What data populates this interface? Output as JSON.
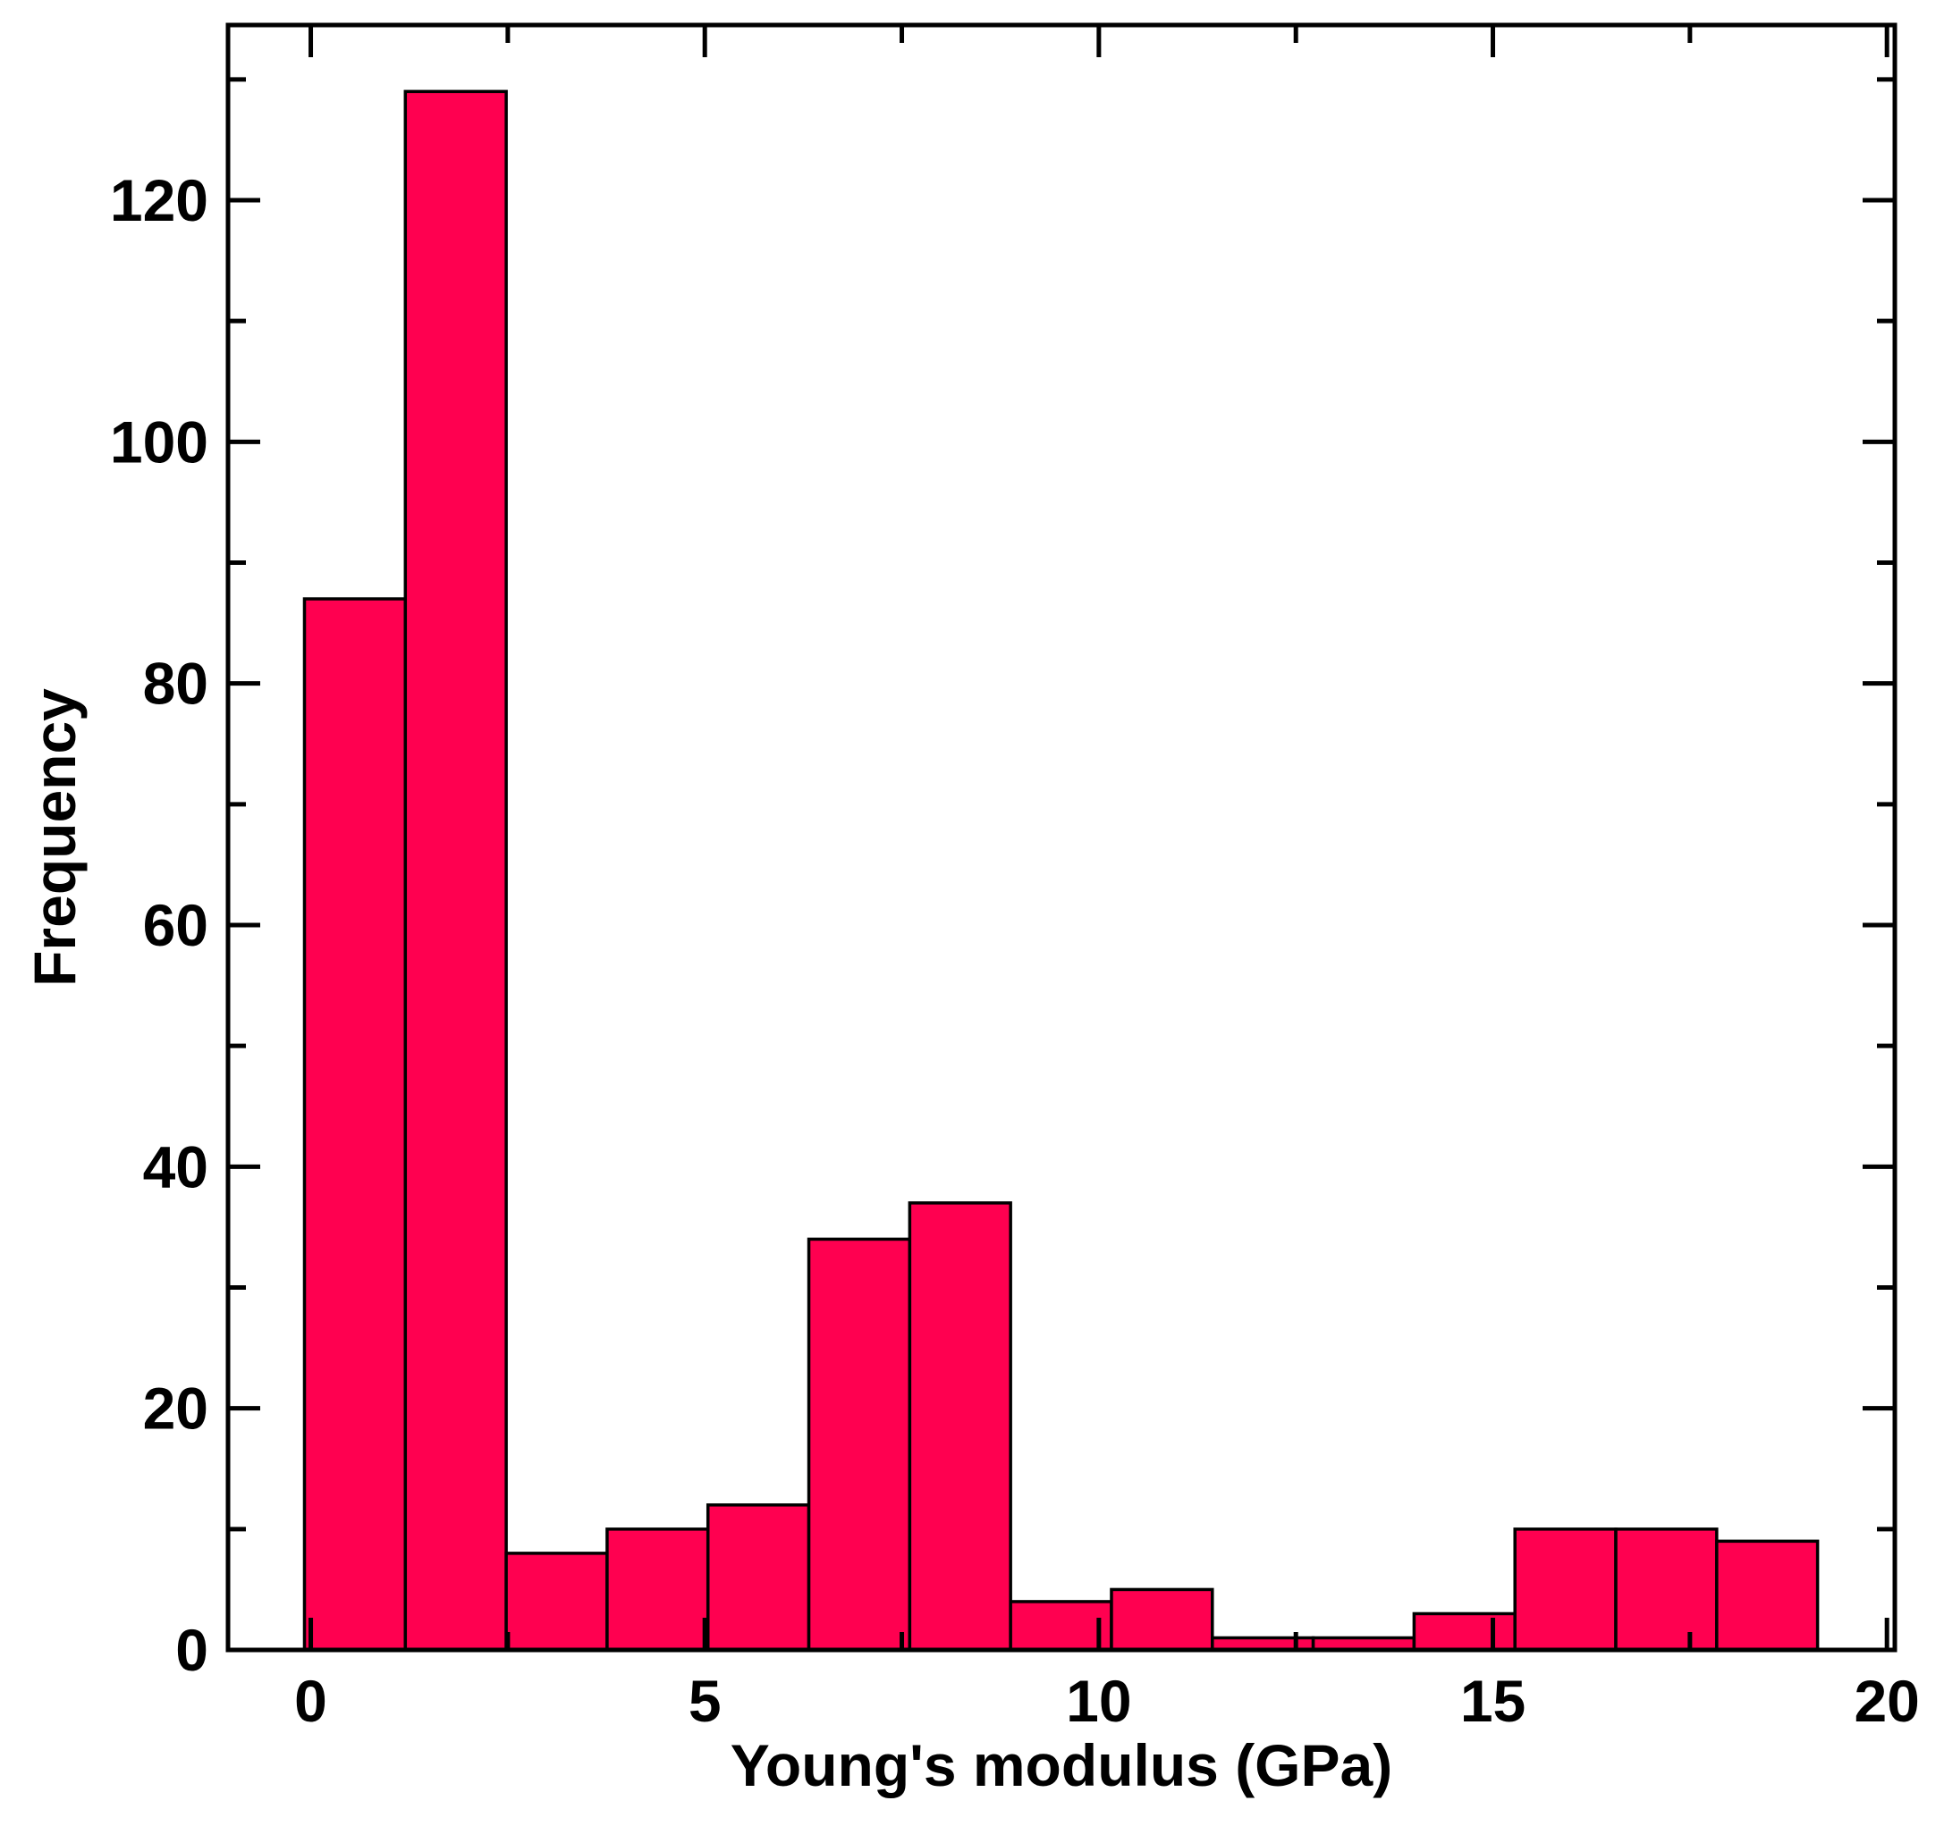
{
  "chart_data": {
    "type": "bar",
    "title": "",
    "xlabel": "Young's modulus (GPa)",
    "ylabel": "Frequency",
    "xlim": [
      -1.05,
      20.1
    ],
    "ylim": [
      0,
      134.5
    ],
    "x_ticks": [
      0,
      5,
      10,
      15,
      20
    ],
    "x_minor_step": 2.5,
    "y_ticks": [
      0,
      20,
      40,
      60,
      80,
      100,
      120
    ],
    "y_minor_step": 10,
    "grid": false,
    "legend": "none",
    "bar_color": "#ff0050",
    "edge_color": "#000000",
    "bin_width": 1.28,
    "bin_starts": [
      -0.08,
      1.2,
      2.48,
      3.76,
      5.04,
      6.32,
      7.6,
      8.88,
      10.16,
      11.44,
      12.72,
      14.0,
      15.28,
      16.56,
      17.84
    ],
    "values": [
      87,
      129,
      8,
      10,
      12,
      34,
      37,
      4,
      5,
      1,
      1,
      3,
      10,
      10,
      9
    ]
  }
}
